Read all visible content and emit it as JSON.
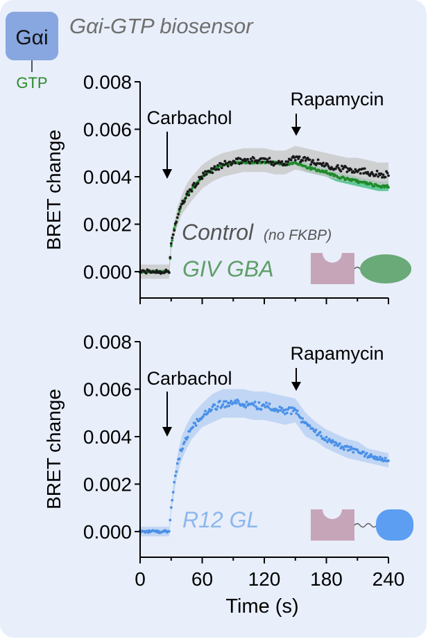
{
  "header": {
    "badge_label": "Gαi",
    "badge_sub": "GTP",
    "title": "Gαi-GTP biosensor"
  },
  "colors": {
    "background": "#e8eefa",
    "badge": "#88a6e0",
    "gtp_green": "#2b8a2b",
    "control": "#1a1a1a",
    "control_band": "#c8c8c8",
    "giv_gba": "#1f8a2a",
    "giv_band": "#3fbf7f",
    "giv_label": "#5e9e68",
    "r12": "#4a90e8",
    "r12_band": "#b5d0f3",
    "r12_label": "#8db7ee",
    "fkbp_shape": "#c7a5b8",
    "giv_shape": "#6aa978",
    "r12_shape": "#5b9ef2",
    "control_label": "#555555"
  },
  "chart_data": [
    {
      "type": "scatter",
      "panel": "top",
      "ylabel": "BRET change",
      "xlabel": "",
      "xlim": [
        0,
        240
      ],
      "ylim": [
        0,
        0.008
      ],
      "yticks": [
        "0.000",
        "0.002",
        "0.004",
        "0.006",
        "0.008"
      ],
      "annotations": [
        {
          "text": "Carbachol",
          "x": 30
        },
        {
          "text": "Rapamycin",
          "x": 150
        }
      ],
      "series": [
        {
          "name": "Control",
          "name_suffix": "(no FKBP)",
          "x": [
            0,
            10,
            20,
            28,
            30,
            33,
            36,
            40,
            45,
            50,
            60,
            70,
            80,
            90,
            100,
            110,
            120,
            130,
            140,
            150,
            160,
            170,
            180,
            190,
            200,
            210,
            220,
            230,
            240
          ],
          "y": [
            0.0,
            0.0,
            0.0,
            0.0,
            0.0012,
            0.0018,
            0.0023,
            0.0028,
            0.0032,
            0.0035,
            0.004,
            0.0043,
            0.0045,
            0.0046,
            0.0047,
            0.0047,
            0.0047,
            0.0046,
            0.0046,
            0.0048,
            0.0047,
            0.0046,
            0.0045,
            0.0044,
            0.0043,
            0.0043,
            0.0042,
            0.0041,
            0.0041
          ],
          "band": [
            0.0003,
            0.0003,
            0.0003,
            0.0003,
            0.0003,
            0.0003,
            0.0004,
            0.0004,
            0.0005,
            0.0005,
            0.0005,
            0.0005,
            0.0005,
            0.0005,
            0.0005,
            0.0005,
            0.0005,
            0.0005,
            0.0005,
            0.0005,
            0.0005,
            0.0005,
            0.0005,
            0.0005,
            0.0005,
            0.0005,
            0.0005,
            0.0005,
            0.0005
          ]
        },
        {
          "name": "GIV GBA",
          "x": [
            0,
            10,
            20,
            28,
            30,
            33,
            36,
            40,
            45,
            50,
            60,
            70,
            80,
            90,
            100,
            110,
            120,
            130,
            140,
            150,
            160,
            170,
            180,
            190,
            200,
            210,
            220,
            230,
            240
          ],
          "y": [
            0.0,
            0.0,
            0.0,
            0.0,
            0.0011,
            0.0018,
            0.0023,
            0.0028,
            0.0032,
            0.0035,
            0.004,
            0.0043,
            0.0045,
            0.0046,
            0.0046,
            0.0046,
            0.0046,
            0.0046,
            0.0045,
            0.0046,
            0.0044,
            0.0043,
            0.0042,
            0.004,
            0.0039,
            0.0038,
            0.0037,
            0.0036,
            0.0036
          ],
          "band": [
            0.0001,
            0.0001,
            0.0001,
            0.0001,
            0.0001,
            0.0001,
            0.0001,
            0.0001,
            0.0001,
            0.0001,
            0.0001,
            0.0001,
            0.0001,
            0.0001,
            0.0001,
            0.0001,
            0.0001,
            0.0001,
            0.0001,
            0.0001,
            0.0002,
            0.0002,
            0.0002,
            0.0002,
            0.0002,
            0.0002,
            0.0002,
            0.0002,
            0.0002
          ]
        }
      ]
    },
    {
      "type": "scatter",
      "panel": "bottom",
      "ylabel": "BRET change",
      "xlabel": "Time (s)",
      "xlim": [
        0,
        240
      ],
      "ylim": [
        0,
        0.008
      ],
      "xticks": [
        "0",
        "60",
        "120",
        "180",
        "240"
      ],
      "yticks": [
        "0.000",
        "0.002",
        "0.004",
        "0.006",
        "0.008"
      ],
      "annotations": [
        {
          "text": "Carbachol",
          "x": 30
        },
        {
          "text": "Rapamycin",
          "x": 150
        }
      ],
      "series": [
        {
          "name": "R12 GL",
          "x": [
            0,
            10,
            20,
            28,
            30,
            33,
            36,
            40,
            45,
            50,
            60,
            70,
            80,
            90,
            100,
            110,
            120,
            130,
            140,
            150,
            155,
            160,
            170,
            180,
            190,
            200,
            210,
            220,
            230,
            240
          ],
          "y": [
            0.0,
            0.0,
            0.0,
            0.0,
            0.001,
            0.002,
            0.0028,
            0.0035,
            0.004,
            0.0044,
            0.0049,
            0.0052,
            0.0054,
            0.0054,
            0.0054,
            0.0053,
            0.0053,
            0.0052,
            0.0051,
            0.0051,
            0.0048,
            0.0045,
            0.0042,
            0.0039,
            0.0037,
            0.0035,
            0.0034,
            0.0032,
            0.0031,
            0.003
          ],
          "band": [
            0.0002,
            0.0002,
            0.0002,
            0.0002,
            0.0002,
            0.0003,
            0.0004,
            0.0005,
            0.0005,
            0.0005,
            0.0005,
            0.0006,
            0.0006,
            0.0006,
            0.0006,
            0.0006,
            0.0006,
            0.0006,
            0.0006,
            0.0005,
            0.0005,
            0.0005,
            0.0004,
            0.0004,
            0.0004,
            0.0004,
            0.0004,
            0.0003,
            0.0003,
            0.0003
          ]
        }
      ]
    }
  ]
}
